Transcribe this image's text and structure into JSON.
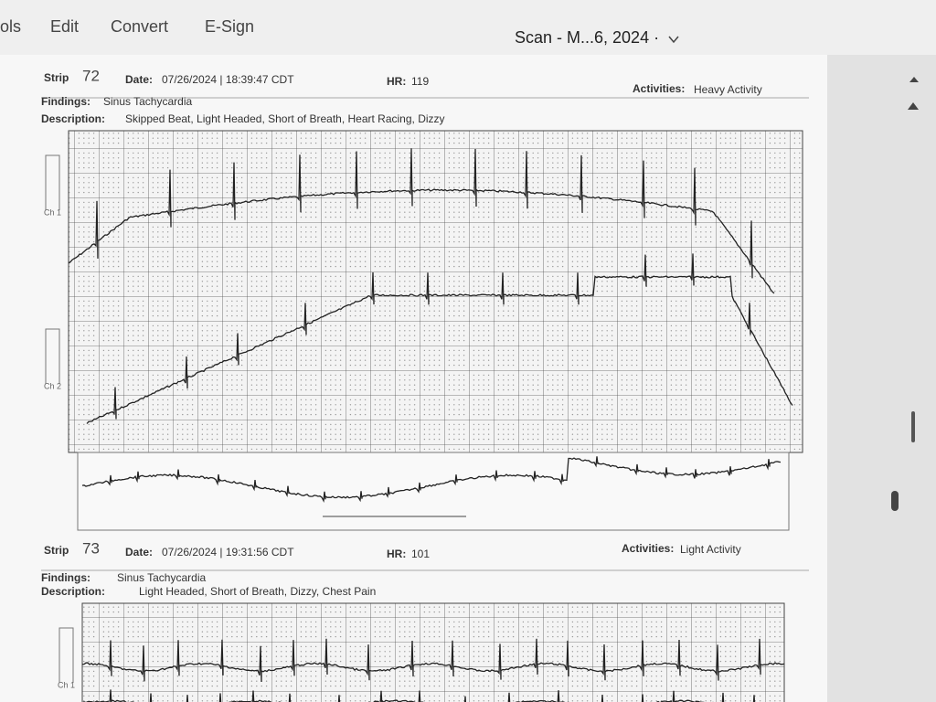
{
  "menu": [
    "ols",
    "Edit",
    "Convert",
    "E-Sign"
  ],
  "document_title": "Scan - M...6, 2024 ·",
  "strips": [
    {
      "label": "Strip",
      "number": "72",
      "date_label": "Date:",
      "date": "07/26/2024 | 18:39:47 CDT",
      "hr_label": "HR:",
      "hr": "119",
      "activities_label": "Activities:",
      "activities": "Heavy Activity",
      "findings_label": "Findings:",
      "findings": "Sinus Tachycardia",
      "description_label": "Description:",
      "description": "Skipped Beat, Light Headed, Short of Breath, Heart Racing, Dizzy",
      "channels": [
        "Ch 1",
        "Ch 2"
      ]
    },
    {
      "label": "Strip",
      "number": "73",
      "date_label": "Date:",
      "date": "07/26/2024 | 19:31:56 CDT",
      "hr_label": "HR:",
      "hr": "101",
      "activities_label": "Activities:",
      "activities": "Light Activity",
      "findings_label": "Findings:",
      "findings": "Sinus Tachycardia",
      "description_label": "Description:",
      "description": "Light Headed, Short of Breath, Dizzy, Chest Pain",
      "channels": [
        "Ch 1"
      ]
    }
  ]
}
